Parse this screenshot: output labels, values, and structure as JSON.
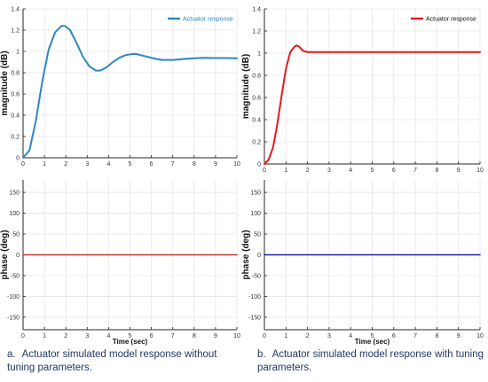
{
  "colors": {
    "left_line": "#2e86c1",
    "right_line": "#e41a1c",
    "phase_left_line": "#c0392b",
    "phase_right_line": "#1f1fa8",
    "grid": "#e6e6e6",
    "axis": "#262626",
    "caption": "#1f3864"
  },
  "captions": {
    "a_label": "a.",
    "a_text": "Actuator simulated model response without tuning parameters.",
    "b_label": "b.",
    "b_text": "Actuator simulated model response with tuning parameters."
  },
  "chart_data": [
    {
      "type": "line",
      "panel": "top-left",
      "ylabel": "magnitude (dB)",
      "xlabel": "",
      "xlim": [
        0,
        10
      ],
      "ylim": [
        0,
        1.4
      ],
      "xticks": [
        0,
        1,
        2,
        3,
        4,
        5,
        6,
        7,
        8,
        9,
        10
      ],
      "yticks": [
        0,
        0.2,
        0.4,
        0.6,
        0.8,
        1,
        1.2,
        1.4
      ],
      "grid": true,
      "legend": "top-right",
      "series": [
        {
          "name": "Actuator response",
          "color_key": "left_line",
          "x": [
            0,
            0.3,
            0.6,
            0.9,
            1.2,
            1.5,
            1.8,
            1.95,
            2.2,
            2.5,
            2.8,
            3.1,
            3.4,
            3.6,
            3.9,
            4.2,
            4.5,
            4.8,
            5.1,
            5.3,
            5.6,
            5.9,
            6.2,
            6.5,
            6.8,
            7.0,
            7.3,
            7.6,
            8.0,
            8.5,
            9.0,
            9.5,
            10.0
          ],
          "y": [
            0,
            0.07,
            0.35,
            0.72,
            1.02,
            1.18,
            1.24,
            1.24,
            1.2,
            1.08,
            0.95,
            0.86,
            0.82,
            0.82,
            0.85,
            0.9,
            0.94,
            0.965,
            0.975,
            0.975,
            0.96,
            0.945,
            0.93,
            0.92,
            0.92,
            0.92,
            0.925,
            0.93,
            0.935,
            0.94,
            0.938,
            0.937,
            0.935
          ]
        }
      ]
    },
    {
      "type": "line",
      "panel": "top-right",
      "ylabel": "magnitude (dB)",
      "xlabel": "",
      "xlim": [
        0,
        10
      ],
      "ylim": [
        0,
        1.4
      ],
      "xticks": [
        0,
        1,
        2,
        3,
        4,
        5,
        6,
        7,
        8,
        9,
        10
      ],
      "yticks": [
        0,
        0.2,
        0.4,
        0.6,
        0.8,
        1,
        1.2,
        1.4
      ],
      "grid": true,
      "legend": "top-right",
      "series": [
        {
          "name": "Actuator response",
          "color_key": "right_line",
          "x": [
            0,
            0.2,
            0.4,
            0.6,
            0.8,
            1.0,
            1.2,
            1.4,
            1.5,
            1.6,
            1.7,
            1.8,
            2.0,
            2.3,
            2.6,
            3.0,
            4.0,
            5.0,
            6.0,
            7.0,
            8.0,
            9.0,
            10.0
          ],
          "y": [
            0,
            0.04,
            0.15,
            0.36,
            0.62,
            0.86,
            1.01,
            1.06,
            1.07,
            1.06,
            1.04,
            1.02,
            1.01,
            1.01,
            1.01,
            1.01,
            1.01,
            1.01,
            1.01,
            1.01,
            1.01,
            1.01,
            1.01
          ]
        }
      ]
    },
    {
      "type": "line",
      "panel": "bottom-left",
      "ylabel": "phase (deg)",
      "xlabel": "Time (sec)",
      "xlim": [
        0,
        10
      ],
      "ylim": [
        -180,
        180
      ],
      "xticks": [
        0,
        1,
        2,
        3,
        4,
        5,
        6,
        7,
        8,
        9,
        10
      ],
      "yticks": [
        150,
        100,
        50,
        0,
        -50,
        -100,
        -150
      ],
      "grid": true,
      "series": [
        {
          "color_key": "phase_left_line",
          "x": [
            0,
            10
          ],
          "y": [
            0,
            0
          ]
        }
      ]
    },
    {
      "type": "line",
      "panel": "bottom-right",
      "ylabel": "phase (deg)",
      "xlabel": "Time (sec)",
      "xlim": [
        0,
        10
      ],
      "ylim": [
        -180,
        180
      ],
      "xticks": [
        0,
        1,
        2,
        3,
        4,
        5,
        6,
        7,
        8,
        9,
        10
      ],
      "yticks": [
        150,
        100,
        50,
        0,
        -50,
        -100,
        -150
      ],
      "grid": true,
      "series": [
        {
          "color_key": "phase_right_line",
          "x": [
            0,
            10
          ],
          "y": [
            0,
            0
          ]
        }
      ]
    }
  ]
}
